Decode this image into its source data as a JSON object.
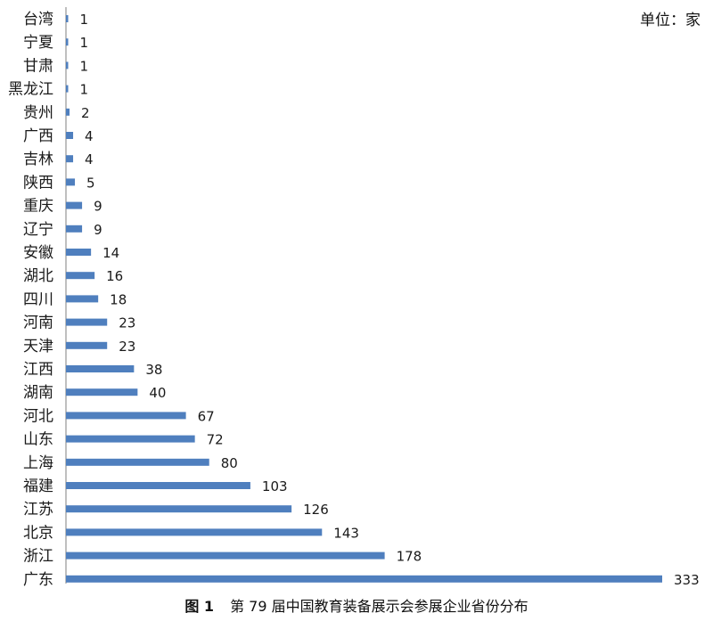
{
  "unit_label": "单位：家",
  "caption": {
    "figure_label": "图 1",
    "text": "第 79 届中国教育装备展示会参展企业省份分布"
  },
  "colors": {
    "bar": "#4f7fbe",
    "axis": "#7f7f7f",
    "text": "#1a1a1a"
  },
  "chart_data": {
    "type": "bar",
    "orientation": "horizontal",
    "title": "",
    "xlabel": "",
    "ylabel": "",
    "xlim": [
      0,
      333
    ],
    "grid": false,
    "categories": [
      "台湾",
      "宁夏",
      "甘肃",
      "黑龙江",
      "贵州",
      "广西",
      "吉林",
      "陕西",
      "重庆",
      "辽宁",
      "安徽",
      "湖北",
      "四川",
      "河南",
      "天津",
      "江西",
      "湖南",
      "河北",
      "山东",
      "上海",
      "福建",
      "江苏",
      "北京",
      "浙江",
      "广东"
    ],
    "values": [
      1,
      1,
      1,
      1,
      2,
      4,
      4,
      5,
      9,
      9,
      14,
      16,
      18,
      23,
      23,
      38,
      40,
      67,
      72,
      80,
      103,
      126,
      143,
      178,
      333
    ],
    "data_labels": [
      "1",
      "1",
      "1",
      "1",
      "2",
      "4",
      "4",
      "5",
      "9",
      "9",
      "14",
      "16",
      "18",
      "23",
      "23",
      "38",
      "40",
      "67",
      "72",
      "80",
      "103",
      "126",
      "143",
      "178",
      "333"
    ]
  }
}
